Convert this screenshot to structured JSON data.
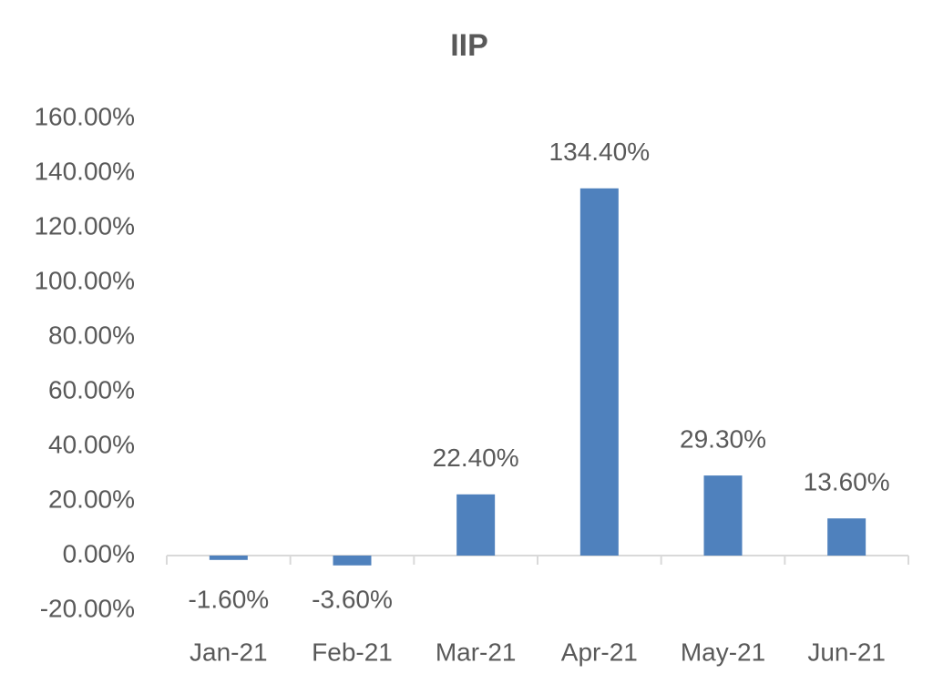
{
  "chart_data": {
    "type": "bar",
    "title": "IIP",
    "categories": [
      "Jan-21",
      "Feb-21",
      "Mar-21",
      "Apr-21",
      "May-21",
      "Jun-21"
    ],
    "values": [
      -1.6,
      -3.6,
      22.4,
      134.4,
      29.3,
      13.6
    ],
    "value_labels": [
      "-1.60%",
      "-3.60%",
      "22.40%",
      "134.40%",
      "29.30%",
      "13.60%"
    ],
    "color": "#4f81bd",
    "ylim": [
      -20,
      160
    ],
    "yticks": [
      {
        "value": -20,
        "label": "-20.00%"
      },
      {
        "value": 0,
        "label": "0.00%"
      },
      {
        "value": 20,
        "label": "20.00%"
      },
      {
        "value": 40,
        "label": "40.00%"
      },
      {
        "value": 60,
        "label": "60.00%"
      },
      {
        "value": 80,
        "label": "80.00%"
      },
      {
        "value": 100,
        "label": "100.00%"
      },
      {
        "value": 120,
        "label": "120.00%"
      },
      {
        "value": 140,
        "label": "140.00%"
      },
      {
        "value": 160,
        "label": "160.00%"
      }
    ],
    "grid": false
  }
}
